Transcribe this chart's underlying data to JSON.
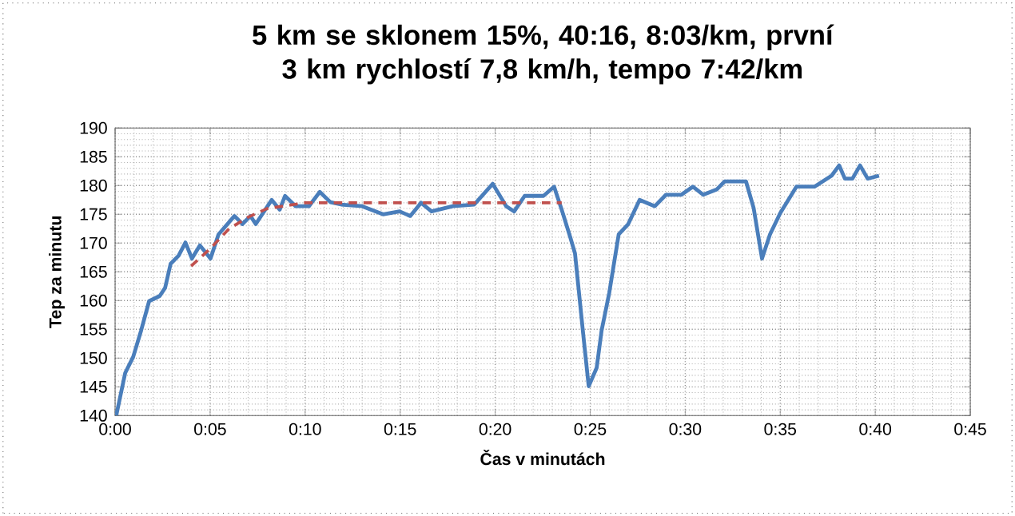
{
  "chart_data": {
    "type": "line",
    "title": "5 km se sklonem 15%, 40:16, 8:03/km, první 3 km rychlostí 7,8 km/h, tempo 7:42/km",
    "xlabel": "Čas v minutách",
    "ylabel": "Tep za minutu",
    "series": [
      {
        "color": "#4a7ebb",
        "x": [
          0.06,
          0.53,
          0.95,
          1.37,
          1.79,
          2.35,
          2.63,
          2.92,
          3.34,
          3.7,
          4.04,
          4.46,
          5.02,
          5.44,
          6.28,
          6.7,
          7.12,
          7.4,
          8.24,
          8.66,
          8.94,
          9.5,
          10.2,
          10.77,
          11.33,
          11.89,
          13.0,
          14.1,
          14.97,
          15.53,
          16.1,
          16.65,
          17.77,
          18.9,
          19.87,
          20.58,
          21.0,
          21.55,
          22.54,
          23.1,
          23.5,
          23.95,
          24.2,
          24.64,
          24.92,
          25.34,
          25.6,
          26.0,
          26.5,
          27.0,
          27.6,
          28.4,
          28.99,
          29.8,
          30.4,
          30.95,
          31.65,
          32.07,
          33.2,
          33.6,
          34.04,
          34.46,
          35.0,
          35.85,
          36.8,
          37.7,
          38.1,
          38.4,
          38.8,
          39.2,
          39.6,
          40.2
        ],
        "values": [
          140,
          147.4,
          150.2,
          154.8,
          159.9,
          160.8,
          162.2,
          166.4,
          167.8,
          170.1,
          167.3,
          169.6,
          167.3,
          171.5,
          174.7,
          173.3,
          174.7,
          173.3,
          177.5,
          175.8,
          178.2,
          176.4,
          176.4,
          178.9,
          177.1,
          176.7,
          176.4,
          175,
          175.5,
          174.7,
          177,
          175.5,
          176.4,
          176.7,
          180.3,
          176.4,
          175.5,
          178.2,
          178.2,
          179.8,
          175.8,
          171,
          168.2,
          153.9,
          145.1,
          148.3,
          154.8,
          161.3,
          171.5,
          173.3,
          177.5,
          176.4,
          178.4,
          178.4,
          179.8,
          178.4,
          179.3,
          180.7,
          180.7,
          176.1,
          167.3,
          171.5,
          175.2,
          179.8,
          179.8,
          181.7,
          183.5,
          181.2,
          181.2,
          183.5,
          181.2,
          181.7
        ]
      },
      {
        "color": "#c0504d",
        "line_style": "dashed",
        "x": [
          4,
          5,
          6,
          7,
          8,
          9,
          10,
          23.5
        ],
        "values": [
          166,
          169,
          172.5,
          174.5,
          176,
          176.5,
          177,
          177
        ]
      }
    ],
    "xlim": [
      0,
      45
    ],
    "ylim": [
      140,
      190
    ],
    "xticks": [
      {
        "value": 0,
        "label": "0:00"
      },
      {
        "value": 5,
        "label": "0:05"
      },
      {
        "value": 10,
        "label": "0:10"
      },
      {
        "value": 15,
        "label": "0:15"
      },
      {
        "value": 20,
        "label": "0:20"
      },
      {
        "value": 25,
        "label": "0:25"
      },
      {
        "value": 30,
        "label": "0:30"
      },
      {
        "value": 35,
        "label": "0:35"
      },
      {
        "value": 40,
        "label": "0:40"
      },
      {
        "value": 45,
        "label": "0:45"
      }
    ],
    "yticks": [
      140,
      145,
      150,
      155,
      160,
      165,
      170,
      175,
      180,
      185,
      190
    ],
    "grid": true,
    "marker": "none",
    "line_style": "solid"
  }
}
